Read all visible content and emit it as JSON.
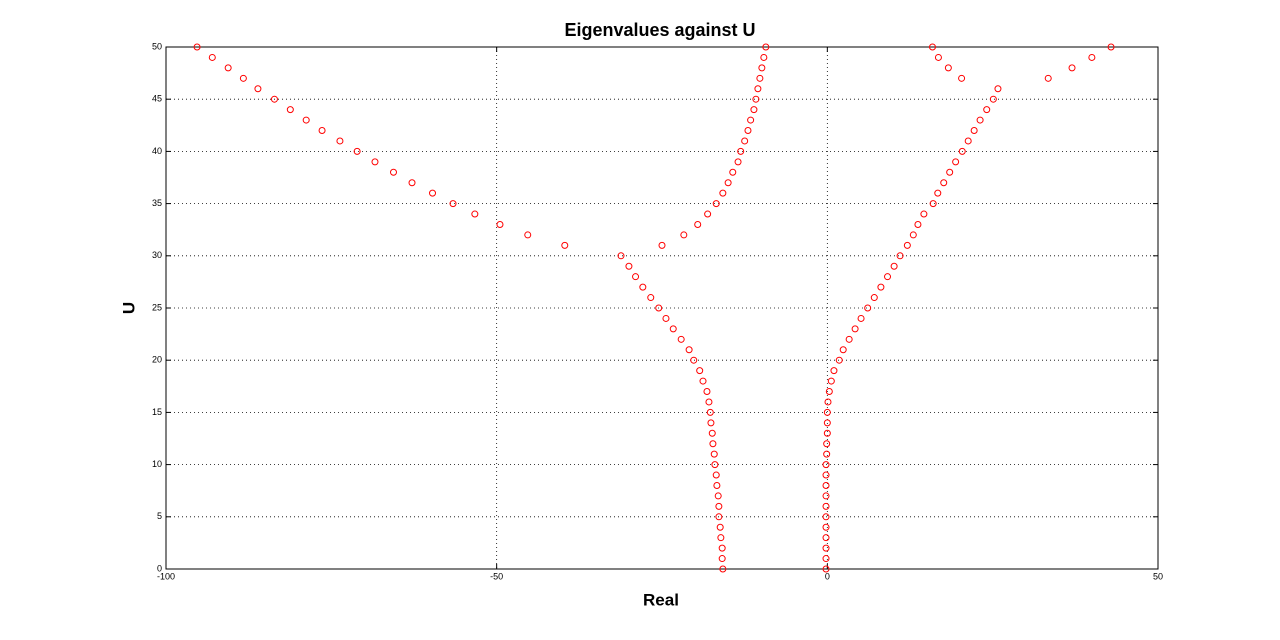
{
  "chart_data": {
    "type": "scatter",
    "title": "Eigenvalues against U",
    "x_label": "Real",
    "y_label": "U",
    "xlim": [
      -100,
      50
    ],
    "ylim": [
      0,
      50
    ],
    "xticks": [
      -100,
      -50,
      0,
      50
    ],
    "yticks": [
      0,
      5,
      10,
      15,
      20,
      25,
      30,
      35,
      40,
      45,
      50
    ],
    "grid": true,
    "series": [
      {
        "color": "#ff0000",
        "x": [
          -0.2,
          -0.2,
          -0.2,
          -0.2,
          -0.2,
          -0.2,
          -0.2,
          -0.2,
          -0.2,
          -0.2,
          -0.2,
          -0.1,
          -0.1,
          0,
          0,
          0,
          0.1,
          0.3,
          0.6,
          1.0,
          1.8,
          2.4,
          3.3,
          4.2,
          5.1,
          6.1,
          7.1,
          8.1,
          9.1,
          10.1,
          11.0,
          12.1,
          13.0,
          13.7,
          14.6,
          16.0,
          16.7,
          17.6,
          18.5,
          19.4,
          20.4,
          21.3,
          22.2,
          23.1,
          24.1,
          25.1,
          25.8
        ],
        "values": [
          0,
          1,
          2,
          3,
          4,
          5,
          6,
          7,
          8,
          9,
          10,
          11,
          12,
          13,
          14,
          15,
          16,
          17,
          18,
          19,
          20,
          21,
          22,
          23,
          24,
          25,
          26,
          27,
          28,
          29,
          30,
          31,
          32,
          33,
          34,
          35,
          36,
          37,
          38,
          39,
          40,
          41,
          42,
          43,
          44,
          45,
          46
        ]
      },
      {
        "color": "#ff0000",
        "x": [
          -15.8,
          -15.9,
          -15.9,
          -16.1,
          -16.2,
          -16.4,
          -16.4,
          -16.5,
          -16.7,
          -16.8,
          -17.0,
          -17.1,
          -17.3,
          -17.4,
          -17.6,
          -17.7,
          -17.9,
          -18.2,
          -18.8,
          -19.3,
          -20.2,
          -20.9,
          -22.1,
          -23.3,
          -24.4,
          -25.5,
          -26.7,
          -27.9,
          -29.0,
          -30.0,
          -31.2
        ],
        "values": [
          0,
          1,
          2,
          3,
          4,
          5,
          6,
          7,
          8,
          9,
          10,
          11,
          12,
          13,
          14,
          15,
          16,
          17,
          18,
          19,
          20,
          21,
          22,
          23,
          24,
          25,
          26,
          27,
          28,
          29,
          30
        ]
      },
      {
        "color": "#ff0000",
        "x": [
          -25.0,
          -21.7,
          -19.6,
          -18.1,
          -16.8,
          -15.8,
          -15.0,
          -14.3,
          -13.5,
          -13.1,
          -12.5,
          -12.0,
          -11.6,
          -11.1,
          -10.8,
          -10.5,
          -10.2,
          -9.9,
          -9.6,
          -9.3
        ],
        "values": [
          31,
          32,
          33,
          34,
          35,
          36,
          37,
          38,
          39,
          40,
          41,
          42,
          43,
          44,
          45,
          46,
          47,
          48,
          49,
          50
        ]
      },
      {
        "color": "#ff0000",
        "x": [
          -39.7,
          -45.3,
          -49.5,
          -53.3,
          -56.6,
          -59.7,
          -62.8,
          -65.6,
          -68.4,
          -71.1,
          -73.7,
          -76.4,
          -78.8,
          -81.2,
          -83.6,
          -86.1,
          -88.3,
          -90.6,
          -93.0,
          -95.3
        ],
        "values": [
          31,
          32,
          33,
          34,
          35,
          36,
          37,
          38,
          39,
          40,
          41,
          42,
          43,
          44,
          45,
          46,
          47,
          48,
          49,
          50
        ]
      },
      {
        "color": "#ff0000",
        "x": [
          20.3,
          18.3,
          16.8,
          15.9,
          33.4,
          37.0,
          40.0,
          42.9
        ],
        "values": [
          47,
          48,
          49,
          50,
          47,
          48,
          49,
          50
        ]
      }
    ]
  }
}
